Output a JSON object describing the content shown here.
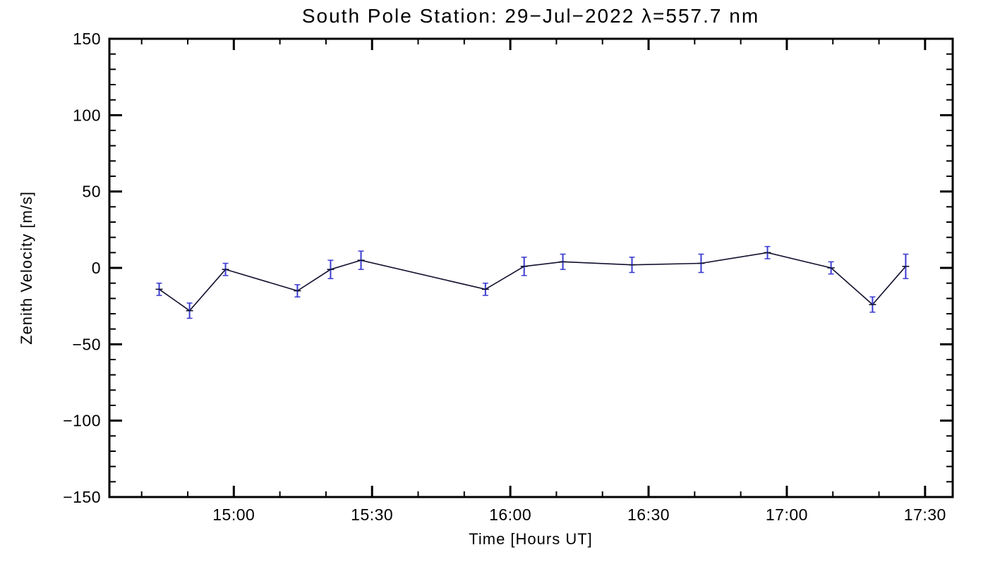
{
  "chart_data": {
    "type": "line",
    "title": "South Pole Station: 29−Jul−2022 λ=557.7 nm",
    "xlabel": "Time [Hours UT]",
    "ylabel": "Zenith Velocity [m/s]",
    "x_hours": [
      14.73,
      14.84,
      14.97,
      15.23,
      15.35,
      15.46,
      15.91,
      16.05,
      16.19,
      16.44,
      16.69,
      16.93,
      17.16,
      17.31,
      17.43
    ],
    "values": [
      -14,
      -28,
      -1,
      -15,
      -1,
      5,
      -14,
      1,
      4,
      2,
      3,
      10,
      0,
      -24,
      1
    ],
    "errors": [
      4,
      5,
      4,
      4,
      6,
      6,
      4,
      6,
      5,
      5,
      6,
      4,
      4,
      5,
      8
    ],
    "xlim": [
      14.55,
      17.6
    ],
    "ylim": [
      -150,
      150
    ],
    "x_major_ticks": [
      15.0,
      15.5,
      16.0,
      16.5,
      17.0,
      17.5
    ],
    "x_tick_labels": [
      "15:00",
      "15:30",
      "16:00",
      "16:30",
      "17:00",
      "17:30"
    ],
    "x_minor_step_hours": 0.16666667,
    "y_major_ticks": [
      -150,
      -100,
      -50,
      0,
      50,
      100,
      150
    ],
    "y_tick_labels": [
      "−150",
      "−100",
      "−50",
      "0",
      "50",
      "100",
      "150"
    ],
    "y_minor_step": 10,
    "grid": false,
    "legend": null,
    "colors": {
      "axis": "#000000",
      "line": "#10102e",
      "marker": "#10102e",
      "error_bar": "#3b3bd1",
      "background": "#ffffff"
    }
  }
}
